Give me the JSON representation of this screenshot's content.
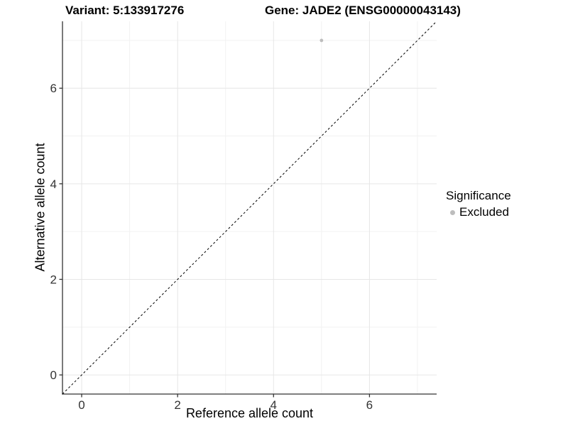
{
  "chart_data": {
    "type": "scatter",
    "title_left": "Variant: 5:133917276",
    "title_right": "Gene: JADE2 (ENSG00000043143)",
    "xlabel": "Reference allele count",
    "ylabel": "Alternative allele count",
    "xlim": [
      -0.4,
      7.4
    ],
    "ylim": [
      -0.4,
      7.4
    ],
    "x_ticks": [
      0,
      2,
      4,
      6
    ],
    "y_ticks": [
      0,
      2,
      4,
      6
    ],
    "grid_major": [
      0,
      2,
      4,
      6
    ],
    "grid_minor": [
      1,
      3,
      5,
      7
    ],
    "grid": true,
    "points": [
      {
        "x": 5,
        "y": 7,
        "significance": "Excluded"
      }
    ],
    "reference_line": {
      "type": "identity",
      "slope": 1,
      "intercept": 0,
      "style": "dashed"
    },
    "legend_position": "right"
  },
  "legend": {
    "title": "Significance",
    "items": [
      {
        "label": "Excluded",
        "color": "#bdbdbd",
        "marker": "circle-icon"
      }
    ]
  },
  "colors": {
    "point": "#bdbdbd",
    "grid_major": "#e6e6e6",
    "grid_minor": "#f2f2f2",
    "axis_line": "#333333",
    "tick_label": "#333333",
    "reference_line": "#000000",
    "background": "#ffffff"
  }
}
